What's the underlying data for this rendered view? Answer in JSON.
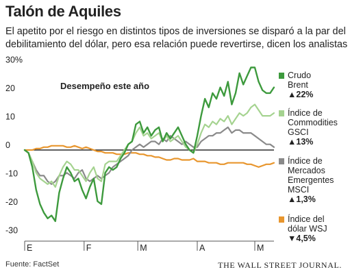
{
  "header": {
    "title": "Talón de Aquiles",
    "subtitle": "El apetito por el riesgo en distintos tipos de inversiones se disparó a la par del debilitamiento del dólar, pero esa relación puede revertirse, dicen los analistas"
  },
  "footer": {
    "source": "Fuente: FactSet",
    "brand": "THE WALL STREET JOURNAL."
  },
  "chart_data": {
    "type": "line",
    "title": "Desempeño este año",
    "y_ticks": [
      "30%",
      "20",
      "10",
      "0",
      "-10",
      "-20",
      "-30"
    ],
    "y_tick_values": [
      30,
      20,
      10,
      0,
      -10,
      -20,
      -30
    ],
    "ylim": [
      -32,
      32
    ],
    "x_ticks": [
      "E",
      "F",
      "M",
      "A",
      "M"
    ],
    "x_tick_days": [
      0,
      31,
      59,
      90,
      120
    ],
    "x_range_days": [
      0,
      130
    ],
    "grid": "zero line only",
    "legend_position": "right",
    "series": [
      {
        "key": "brent",
        "name_lines": [
          "Crudo",
          "Brent"
        ],
        "change_arrow": "▲",
        "change": "22%",
        "color": "#3d9a3d",
        "width": 2.4,
        "x": [
          0,
          2,
          4,
          6,
          8,
          10,
          12,
          14,
          16,
          18,
          20,
          22,
          24,
          26,
          28,
          30,
          32,
          34,
          36,
          38,
          40,
          42,
          44,
          46,
          48,
          50,
          52,
          54,
          56,
          58,
          60,
          62,
          64,
          66,
          68,
          70,
          72,
          74,
          76,
          78,
          80,
          82,
          84,
          86,
          88,
          90,
          92,
          94,
          96,
          98,
          100,
          102,
          104,
          106,
          108,
          110,
          112,
          114,
          116,
          118,
          120,
          122,
          124,
          126,
          128,
          130
        ],
        "y": [
          0,
          -1,
          -6,
          -14,
          -19,
          -22,
          -24,
          -23,
          -25,
          -15,
          -10,
          -6,
          -8,
          -11,
          -10,
          -14,
          -17,
          -13,
          -10,
          -18,
          -19,
          -8,
          -6,
          -7,
          -6,
          -3,
          -1,
          2,
          3,
          9,
          10,
          6,
          8,
          5,
          7,
          8,
          3,
          6,
          4,
          6,
          8,
          5,
          2,
          0,
          -1,
          5,
          12,
          18,
          15,
          20,
          18,
          22,
          19,
          24,
          16,
          20,
          27,
          23,
          26,
          29,
          29,
          24,
          21,
          20,
          20,
          22
        ]
      },
      {
        "key": "gsci",
        "name_lines": [
          "Índice de",
          "Commodities",
          "GSCI"
        ],
        "change_arrow": "▲",
        "change": "13%",
        "color": "#a5d390",
        "width": 2.2,
        "x": [
          0,
          2,
          4,
          6,
          8,
          10,
          12,
          14,
          16,
          18,
          20,
          22,
          24,
          26,
          28,
          30,
          32,
          34,
          36,
          38,
          40,
          42,
          44,
          46,
          48,
          50,
          52,
          54,
          56,
          58,
          60,
          62,
          64,
          66,
          68,
          70,
          72,
          74,
          76,
          78,
          80,
          82,
          84,
          86,
          88,
          90,
          92,
          94,
          96,
          98,
          100,
          102,
          104,
          106,
          108,
          110,
          112,
          114,
          116,
          118,
          120,
          122,
          124,
          126,
          128,
          130
        ],
        "y": [
          0,
          -1,
          -4,
          -8,
          -10,
          -11,
          -12,
          -11,
          -13,
          -9,
          -6,
          -4,
          -5,
          -7,
          -7,
          -9,
          -11,
          -8,
          -6,
          -10,
          -11,
          -5,
          -4,
          -4,
          -4,
          -2,
          0,
          2,
          3,
          6,
          8,
          5,
          6,
          4,
          5,
          6,
          3,
          5,
          3,
          4,
          5,
          3,
          1,
          0,
          -1,
          2,
          6,
          9,
          8,
          10,
          9,
          11,
          10,
          12,
          9,
          11,
          13,
          12,
          13,
          15,
          16,
          14,
          12,
          12,
          12,
          13
        ]
      },
      {
        "key": "msci",
        "name_lines": [
          "Índice de",
          "Mercados",
          "Emergentes",
          "MSCI"
        ],
        "change_arrow": "▲",
        "change": "1,3%",
        "color": "#8a8a8a",
        "width": 2.2,
        "x": [
          0,
          2,
          4,
          6,
          8,
          10,
          12,
          14,
          16,
          18,
          20,
          22,
          24,
          26,
          28,
          30,
          32,
          34,
          36,
          38,
          40,
          42,
          44,
          46,
          48,
          50,
          52,
          54,
          56,
          58,
          60,
          62,
          64,
          66,
          68,
          70,
          72,
          74,
          76,
          78,
          80,
          82,
          84,
          86,
          88,
          90,
          92,
          94,
          96,
          98,
          100,
          102,
          104,
          106,
          108,
          110,
          112,
          114,
          116,
          118,
          120,
          122,
          124,
          126,
          128,
          130
        ],
        "y": [
          0,
          -1,
          -4,
          -7,
          -9,
          -9,
          -11,
          -12,
          -11,
          -9,
          -9,
          -8,
          -9,
          -10,
          -8,
          -7,
          -10,
          -11,
          -10,
          -9,
          -10,
          -9,
          -8,
          -6,
          -5,
          -4,
          -3,
          -2,
          0,
          1,
          2,
          1,
          2,
          3,
          3,
          2,
          4,
          3,
          5,
          4,
          3,
          2,
          3,
          2,
          1,
          1,
          3,
          4,
          5,
          5,
          6,
          6,
          7,
          8,
          6,
          7,
          7,
          6,
          6,
          6,
          5,
          4,
          3,
          2,
          2,
          1
        ]
      },
      {
        "key": "dollar",
        "name_lines": [
          "Índice del",
          "dólar WSJ"
        ],
        "change_arrow": "▼",
        "change": "4,5%",
        "color": "#e8962e",
        "width": 2.2,
        "x": [
          0,
          2,
          4,
          6,
          8,
          10,
          12,
          14,
          16,
          18,
          20,
          22,
          24,
          26,
          28,
          30,
          32,
          34,
          36,
          38,
          40,
          42,
          44,
          46,
          48,
          50,
          52,
          54,
          56,
          58,
          60,
          62,
          64,
          66,
          68,
          70,
          72,
          74,
          76,
          78,
          80,
          82,
          84,
          86,
          88,
          90,
          92,
          94,
          96,
          98,
          100,
          102,
          104,
          106,
          108,
          110,
          112,
          114,
          116,
          118,
          120,
          122,
          124,
          126,
          128,
          130
        ],
        "y": [
          0,
          0,
          0,
          0.5,
          0.5,
          1,
          1,
          1.5,
          1.5,
          1.5,
          1.5,
          1,
          1,
          1.5,
          1,
          0.5,
          1,
          0.5,
          0,
          -0.5,
          -0.5,
          -1,
          -1,
          -1,
          -1.5,
          -1.5,
          -1.5,
          -1,
          -1,
          -1,
          -1.5,
          -1.5,
          -2,
          -2,
          -2.5,
          -2.5,
          -3,
          -3.5,
          -3.5,
          -3,
          -3,
          -3.5,
          -3.5,
          -3.5,
          -3,
          -4,
          -4,
          -4,
          -4.5,
          -4.5,
          -4.5,
          -5,
          -5,
          -4.5,
          -4.5,
          -4.5,
          -4.5,
          -4.5,
          -5,
          -5,
          -5.5,
          -6,
          -5.5,
          -5,
          -5,
          -4.5
        ]
      }
    ]
  }
}
